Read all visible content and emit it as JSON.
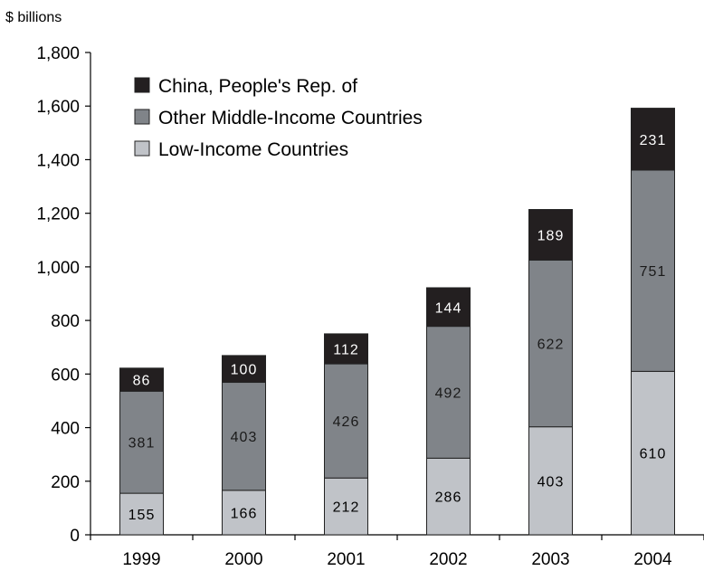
{
  "chart_data": {
    "type": "bar",
    "stacked": true,
    "unit_label": "$ billions",
    "categories": [
      "1999",
      "2000",
      "2001",
      "2002",
      "2003",
      "2004"
    ],
    "series": [
      {
        "name": "Low-Income Countries",
        "values": [
          155,
          166,
          212,
          286,
          403,
          610
        ],
        "color": "#c0c3c8",
        "label_color": "#000000"
      },
      {
        "name": "Other Middle-Income Countries",
        "values": [
          381,
          403,
          426,
          492,
          622,
          751
        ],
        "color": "#808489",
        "label_color": "#1a1a1a"
      },
      {
        "name": "China, People's Rep. of",
        "values": [
          86,
          100,
          112,
          144,
          189,
          231
        ],
        "color": "#231f20",
        "label_color": "#ffffff"
      }
    ],
    "legend_order": [
      "China, People's Rep. of",
      "Other Middle-Income Countries",
      "Low-Income Countries"
    ],
    "yticks": [
      "0",
      "200",
      "400",
      "600",
      "800",
      "1,000",
      "1,200",
      "1,400",
      "1,600",
      "1,800"
    ],
    "ylim": [
      0,
      1800
    ],
    "grid": false,
    "legend_position": "top-left"
  }
}
